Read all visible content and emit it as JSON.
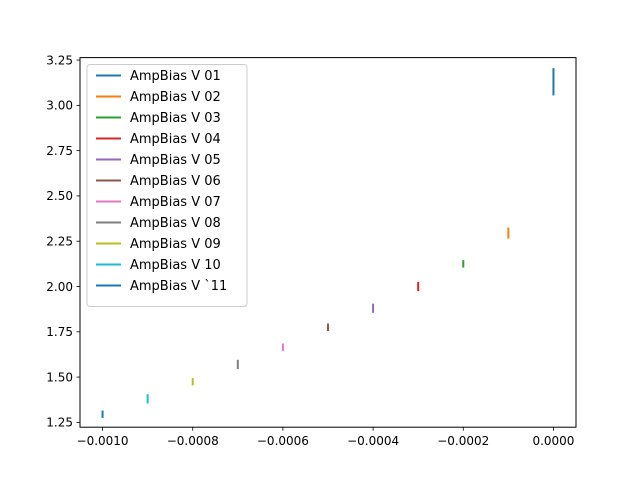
{
  "chart_data": {
    "type": "line",
    "title": "",
    "xlabel": "",
    "ylabel": "",
    "xlim": [
      -0.00105,
      5e-05
    ],
    "ylim": [
      1.2235,
      3.2635
    ],
    "xticks": [
      -0.001,
      -0.0008,
      -0.0006,
      -0.0004,
      -0.0002,
      0.0
    ],
    "xtick_labels": [
      "−0.0010",
      "−0.0008",
      "−0.0006",
      "−0.0004",
      "−0.0002",
      "0.0000"
    ],
    "yticks": [
      1.25,
      1.5,
      1.75,
      2.0,
      2.25,
      2.5,
      2.75,
      3.0,
      3.25
    ],
    "ytick_labels": [
      "1.25",
      "1.50",
      "1.75",
      "2.00",
      "2.25",
      "2.50",
      "2.75",
      "3.00",
      "3.25"
    ],
    "grid": false,
    "legend_position": "upper-left",
    "series": [
      {
        "name": "AmpBias V 01",
        "color": "#1f77b4",
        "x": [
          -0.001,
          -0.001
        ],
        "y": [
          1.28,
          1.31
        ]
      },
      {
        "name": "AmpBias V 02",
        "color": "#ff7f0e",
        "x": [
          -0.0001,
          -0.0001
        ],
        "y": [
          2.27,
          2.32
        ]
      },
      {
        "name": "AmpBias V 03",
        "color": "#2ca02c",
        "x": [
          -0.0002,
          -0.0002
        ],
        "y": [
          2.11,
          2.14
        ]
      },
      {
        "name": "AmpBias V 04",
        "color": "#d62728",
        "x": [
          -0.0003,
          -0.0003
        ],
        "y": [
          1.98,
          2.02
        ]
      },
      {
        "name": "AmpBias V 05",
        "color": "#9467bd",
        "x": [
          -0.0004,
          -0.0004
        ],
        "y": [
          1.86,
          1.9
        ]
      },
      {
        "name": "AmpBias V 06",
        "color": "#8c564b",
        "x": [
          -0.0005,
          -0.0005
        ],
        "y": [
          1.76,
          1.79
        ]
      },
      {
        "name": "AmpBias V 07",
        "color": "#e377c2",
        "x": [
          -0.0006,
          -0.0006
        ],
        "y": [
          1.65,
          1.68
        ]
      },
      {
        "name": "AmpBias V 08",
        "color": "#7f7f7f",
        "x": [
          -0.0007,
          -0.0007
        ],
        "y": [
          1.55,
          1.59
        ]
      },
      {
        "name": "AmpBias V 09",
        "color": "#bcbd22",
        "x": [
          -0.0008,
          -0.0008
        ],
        "y": [
          1.46,
          1.49
        ]
      },
      {
        "name": "AmpBias V 10",
        "color": "#17becf",
        "x": [
          -0.0009,
          -0.0009
        ],
        "y": [
          1.36,
          1.4
        ]
      },
      {
        "name": "AmpBias V `11",
        "color": "#1f77b4",
        "x": [
          0.0,
          0.0
        ],
        "y": [
          3.06,
          3.2
        ]
      }
    ]
  }
}
